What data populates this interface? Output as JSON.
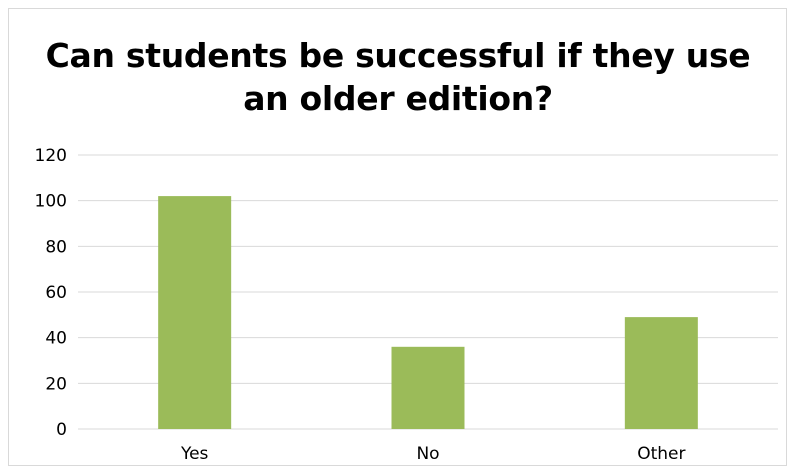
{
  "chart_data": {
    "type": "bar",
    "title_lines": [
      "Can students be successful if they use",
      "an older edition?"
    ],
    "categories": [
      "Yes",
      "No",
      "Other"
    ],
    "values": [
      102,
      36,
      49
    ],
    "xlabel": "",
    "ylabel": "",
    "ylim": [
      0,
      120
    ],
    "yticks": [
      "0",
      "20",
      "40",
      "60",
      "80",
      "100",
      "120"
    ],
    "grid": true,
    "legend": "none",
    "bar_color": "#9bbb59",
    "grid_color": "#d9d9d9"
  }
}
